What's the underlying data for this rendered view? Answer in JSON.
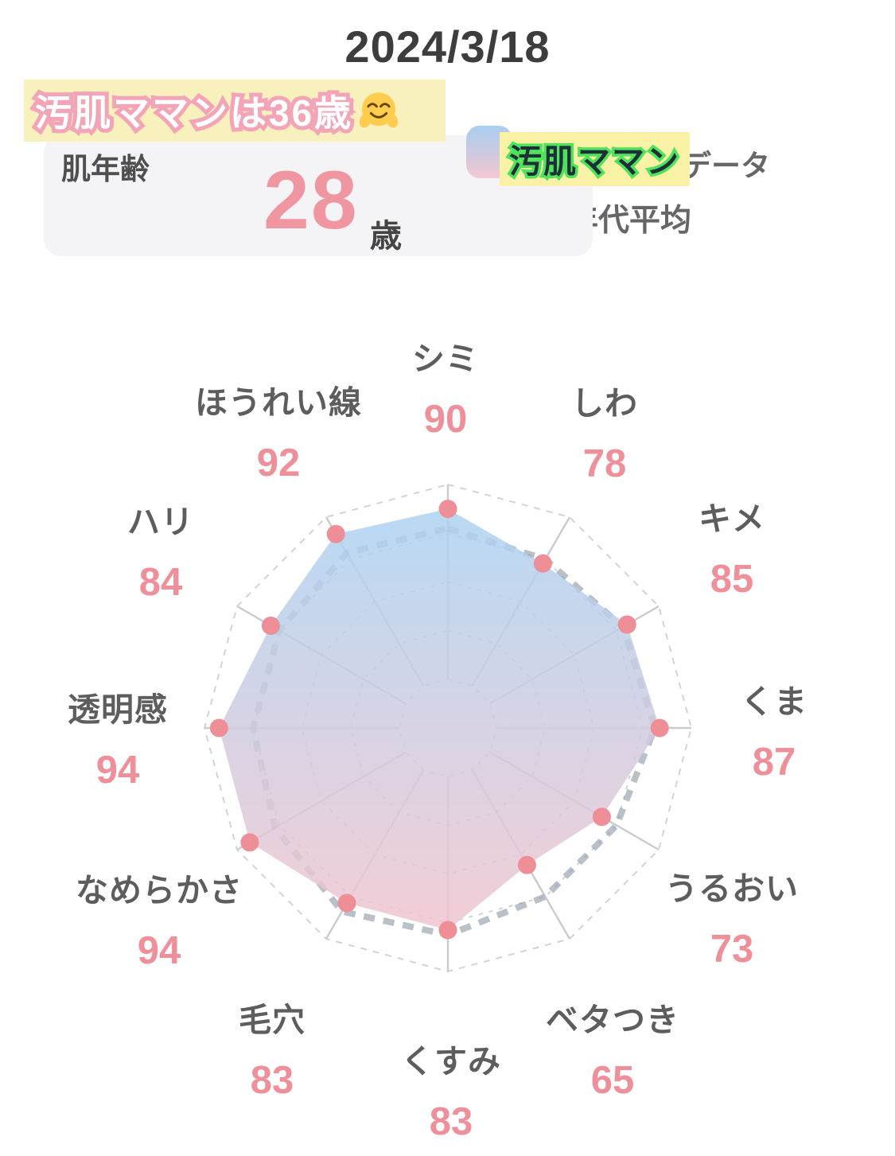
{
  "page": {
    "date": "2024/3/18"
  },
  "title_banner": {
    "text": "汚肌ママンは36歳",
    "emoji": "🤗"
  },
  "skin_age_card": {
    "label": "肌年齢",
    "value": "28",
    "unit": "歳"
  },
  "legend": {
    "user": {
      "name": "汚肌ママン",
      "suffix": "のデータ"
    },
    "average": {
      "label": "同年代平均"
    }
  },
  "chart_data": {
    "type": "radar",
    "axes": [
      "シミ",
      "しわ",
      "キメ",
      "くま",
      "うるおい",
      "ベタつき",
      "くすみ",
      "毛穴",
      "なめらかさ",
      "透明感",
      "ハリ",
      "ほうれい線"
    ],
    "scale": {
      "min": 0,
      "max": 100,
      "rings": 5
    },
    "series": [
      {
        "name": "汚肌ママン",
        "values": [
          90,
          78,
          85,
          87,
          73,
          65,
          83,
          83,
          94,
          94,
          84,
          92
        ],
        "style": "gradient-area-with-dots"
      },
      {
        "name": "同年代平均",
        "values": [
          82,
          80,
          83,
          85,
          80,
          80,
          85,
          87,
          82,
          80,
          80,
          83
        ],
        "style": "thick-dashed-line",
        "values_estimated_from_plot": true
      }
    ],
    "colors": {
      "user_fill_top": "#A8D3F3",
      "user_fill_bottom": "#F7C4CC",
      "point": "#EE8E97",
      "average_line": "#8C96A1",
      "grid_line": "#cfd3db",
      "spoke_line": "#c9cbd1",
      "axis_label": "#5d5d5d",
      "value_label": "#EE8F99",
      "highlight_yellow": "#F8F1A6",
      "banner_yellow": "#F8F0BA",
      "banner_text_outline": "#F3A4B6",
      "legend_name_outline": "#4FE35C",
      "skin_age_pink": "#F096A0"
    },
    "legend_position": "top-right",
    "grid": true
  }
}
